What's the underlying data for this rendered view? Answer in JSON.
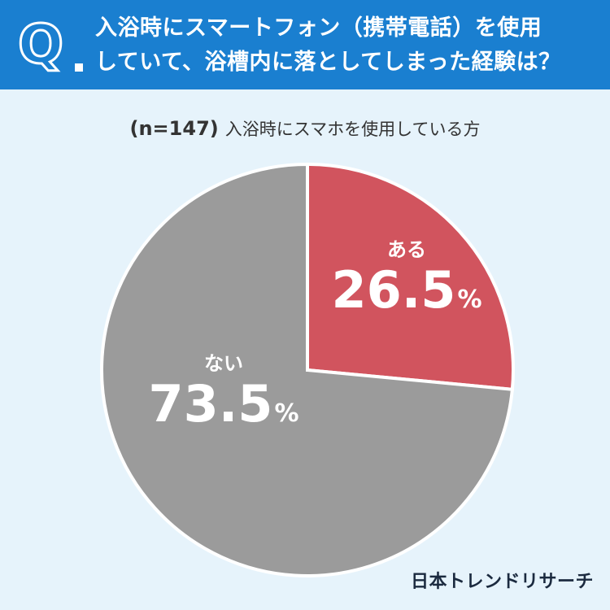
{
  "header": {
    "q_letter": "Q",
    "question_line1": "入浴時にスマートフォン（携帯電話）を使用",
    "question_line2": "していて、浴槽内に落としてしまった経験は？"
  },
  "subtitle": {
    "n": "(n=147)",
    "text": "入浴時にスマホを使用している方"
  },
  "chart_data": {
    "type": "pie",
    "slices": [
      {
        "name": "ある",
        "value": 26.5,
        "value_label": "26.5",
        "unit": "%",
        "color": "#d1545e"
      },
      {
        "name": "ない",
        "value": 73.5,
        "value_label": "73.5",
        "unit": "%",
        "color": "#9b9b9b"
      }
    ],
    "start": "12 o'clock",
    "direction": "clockwise"
  },
  "brand": "日本トレンドリサーチ"
}
